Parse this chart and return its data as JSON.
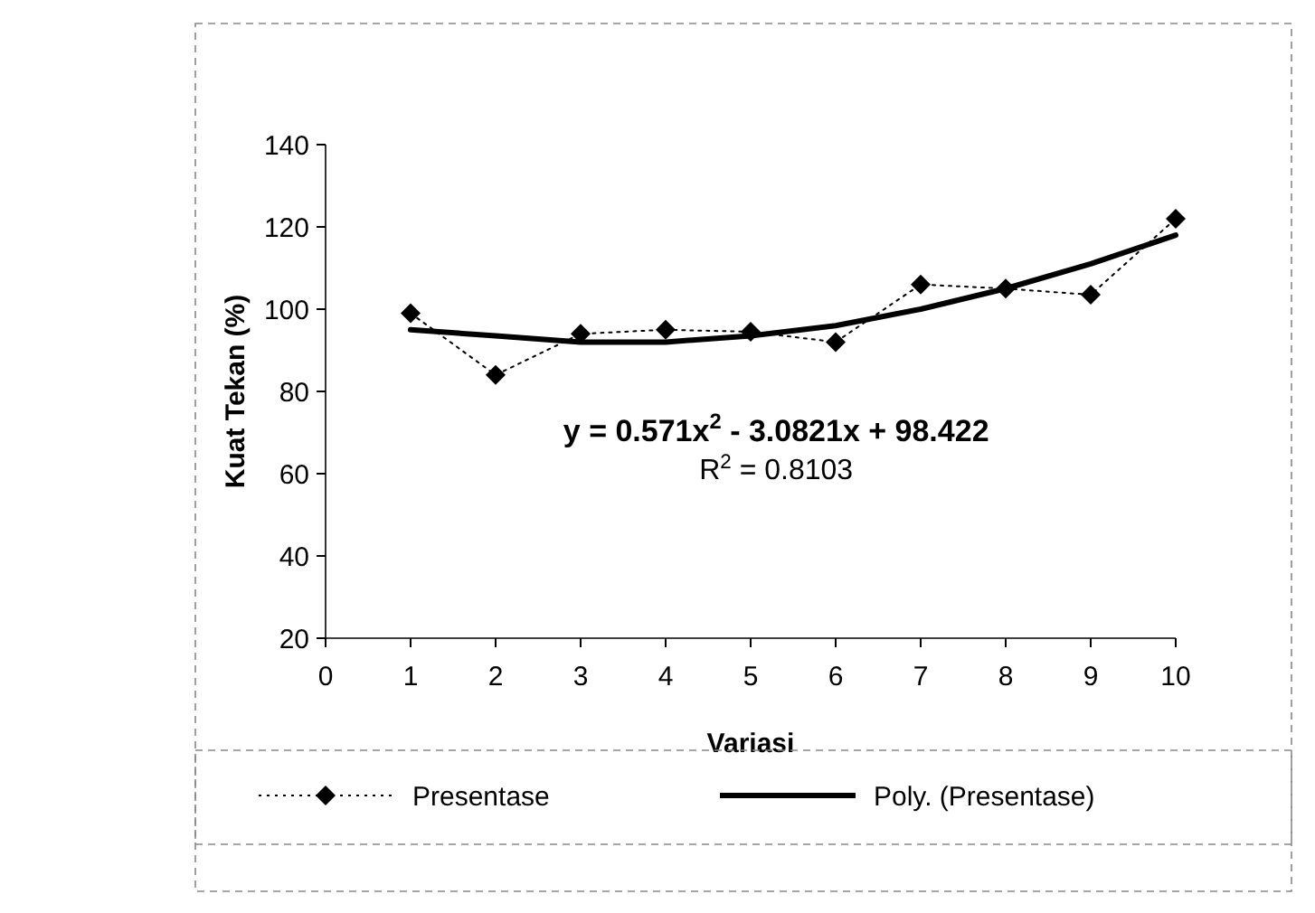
{
  "chart_data": {
    "type": "line",
    "xlabel": "Variasi",
    "ylabel": "Kuat Tekan (%)",
    "xlim": [
      0,
      10
    ],
    "xticks": [
      0,
      1,
      2,
      3,
      4,
      5,
      6,
      7,
      8,
      9,
      10
    ],
    "ylim": [
      20,
      140
    ],
    "yticks": [
      20,
      40,
      60,
      80,
      100,
      120,
      140
    ],
    "legend": "bottom",
    "grid": false,
    "annotations": [
      "y = 0.571x$^{2}$ - 3.0821x + 98.422",
      "R$^{2}$ = 0.8103"
    ],
    "series": [
      {
        "name": "Presentase",
        "color": "#000000",
        "marker": "diamond",
        "line_style": "dotted",
        "x": [
          1,
          2,
          3,
          4,
          5,
          6,
          7,
          8,
          9,
          10
        ],
        "values": [
          99,
          84,
          94,
          95,
          94.5,
          92,
          106,
          105,
          103.5,
          122
        ]
      },
      {
        "name": "Poly. (Presentase)",
        "color": "#000000",
        "marker": "none",
        "line_style": "solid",
        "x": [
          1,
          2,
          3,
          4,
          5,
          6,
          7,
          8,
          9,
          10
        ],
        "values": [
          95,
          93.5,
          92,
          92,
          93.5,
          96,
          100,
          105,
          111,
          118
        ]
      }
    ]
  }
}
